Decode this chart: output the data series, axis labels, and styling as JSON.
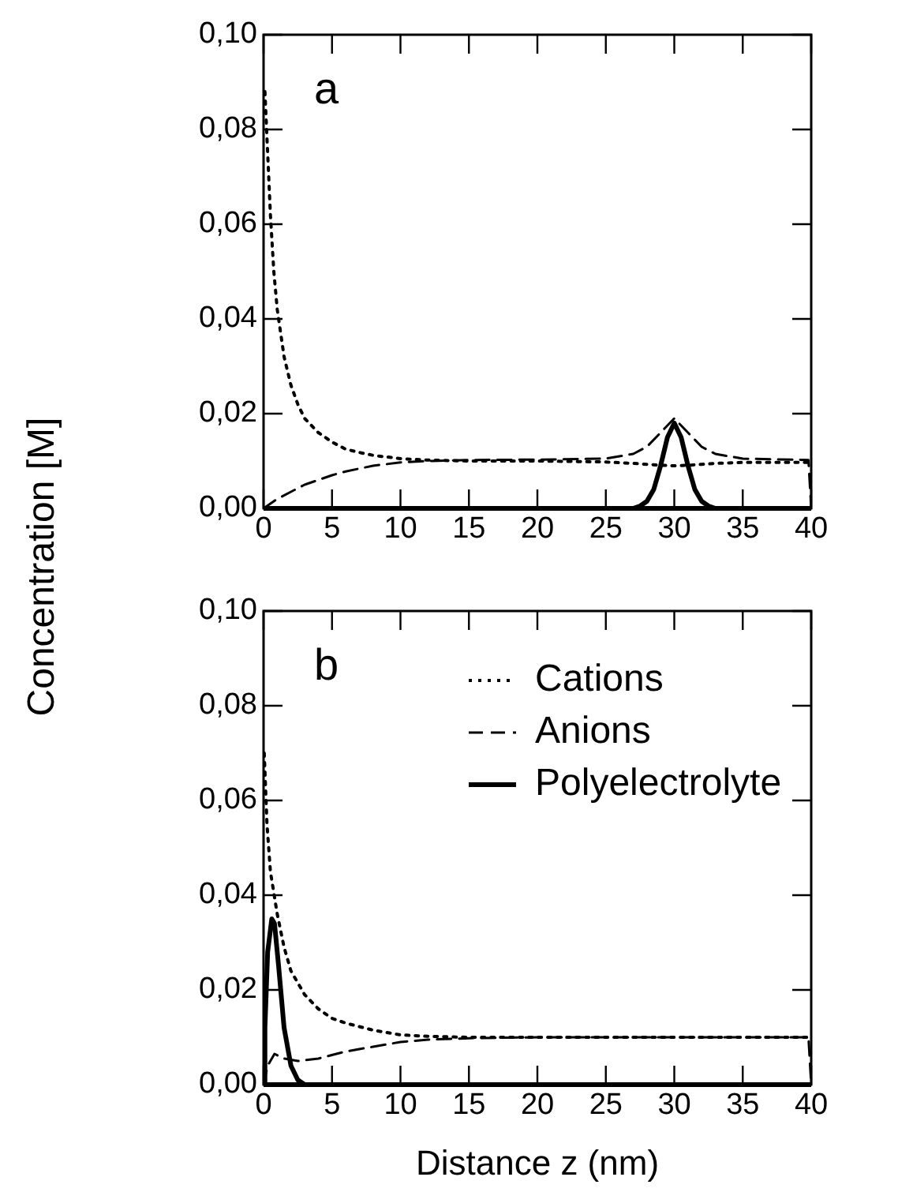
{
  "chart_data": [
    {
      "type": "line",
      "annotations": [
        "a"
      ],
      "ylabel": "Concentration [M]",
      "xlim": [
        0,
        40
      ],
      "xticks": [
        0,
        5,
        10,
        15,
        20,
        25,
        30,
        35,
        40
      ],
      "ylim": [
        0,
        0.1
      ],
      "yticks": [
        {
          "value": 0,
          "label": "0,00"
        },
        {
          "value": 0.02,
          "label": "0,02"
        },
        {
          "value": 0.04,
          "label": "0,04"
        },
        {
          "value": 0.06,
          "label": "0,06"
        },
        {
          "value": 0.08,
          "label": "0,08"
        },
        {
          "value": 0.1,
          "label": "0,10"
        }
      ],
      "grid": false,
      "legend": false,
      "marker": "none",
      "series": [
        {
          "color": "#000000",
          "line_style": "dotted",
          "x": [
            0.1,
            0.3,
            0.5,
            0.75,
            1,
            1.5,
            2,
            2.5,
            3,
            4,
            5,
            6,
            7,
            8,
            10,
            12,
            15,
            20,
            25,
            27,
            28,
            29,
            30,
            31,
            32,
            33,
            35,
            40
          ],
          "values": [
            0.088,
            0.075,
            0.062,
            0.05,
            0.042,
            0.032,
            0.026,
            0.022,
            0.019,
            0.016,
            0.014,
            0.0125,
            0.0118,
            0.0112,
            0.0105,
            0.0102,
            0.01,
            0.01,
            0.0098,
            0.0095,
            0.0093,
            0.0091,
            0.009,
            0.0091,
            0.0093,
            0.0095,
            0.0097,
            0.0097
          ]
        },
        {
          "color": "#000000",
          "line_style": "dashed",
          "x": [
            0,
            0.5,
            1,
            2,
            3,
            4,
            5,
            6,
            8,
            10,
            12,
            15,
            20,
            25,
            27,
            28,
            29,
            30,
            31,
            32,
            33,
            35,
            39.8,
            40
          ],
          "values": [
            0,
            0.001,
            0.002,
            0.0035,
            0.005,
            0.006,
            0.007,
            0.0078,
            0.009,
            0.0097,
            0.01,
            0.0102,
            0.0103,
            0.0105,
            0.0115,
            0.013,
            0.016,
            0.019,
            0.016,
            0.013,
            0.0115,
            0.0105,
            0.0102,
            0
          ]
        },
        {
          "color": "#000000",
          "line_style": "solid",
          "x": [
            0,
            27,
            27.5,
            28,
            28.5,
            29,
            29.5,
            30,
            30.5,
            31,
            31.5,
            32,
            32.5,
            33,
            40
          ],
          "values": [
            0,
            0,
            0.0005,
            0.0015,
            0.004,
            0.009,
            0.015,
            0.018,
            0.015,
            0.009,
            0.004,
            0.0015,
            0.0005,
            0,
            0
          ]
        }
      ]
    },
    {
      "type": "line",
      "annotations": [
        "b"
      ],
      "xlabel": "Distance z (nm)",
      "xlim": [
        0,
        40
      ],
      "xticks": [
        0,
        5,
        10,
        15,
        20,
        25,
        30,
        35,
        40
      ],
      "ylim": [
        0,
        0.1
      ],
      "yticks": [
        {
          "value": 0,
          "label": "0,00"
        },
        {
          "value": 0.02,
          "label": "0,02"
        },
        {
          "value": 0.04,
          "label": "0,04"
        },
        {
          "value": 0.06,
          "label": "0,06"
        },
        {
          "value": 0.08,
          "label": "0,08"
        },
        {
          "value": 0.1,
          "label": "0,10"
        }
      ],
      "grid": false,
      "legend": "top right",
      "marker": "none",
      "series": [
        {
          "name": "Cations",
          "color": "#000000",
          "line_style": "dotted",
          "x": [
            0.05,
            0.25,
            0.5,
            1,
            1.5,
            2,
            3,
            4,
            5,
            6,
            8,
            10,
            12,
            15,
            20,
            30,
            40
          ],
          "values": [
            0.07,
            0.055,
            0.045,
            0.036,
            0.029,
            0.024,
            0.019,
            0.016,
            0.014,
            0.013,
            0.0115,
            0.0105,
            0.0102,
            0.01,
            0.01,
            0.01,
            0.01
          ]
        },
        {
          "name": "Anions",
          "color": "#000000",
          "line_style": "dashed",
          "x": [
            0,
            0.3,
            0.8,
            1.5,
            2.5,
            4,
            6,
            8,
            10,
            12,
            15,
            20,
            30,
            39.8,
            40
          ],
          "values": [
            0,
            0.004,
            0.0065,
            0.0055,
            0.005,
            0.0055,
            0.007,
            0.008,
            0.009,
            0.0095,
            0.0098,
            0.01,
            0.01,
            0.01,
            0
          ]
        },
        {
          "name": "Polyelectrolyte",
          "color": "#000000",
          "line_style": "solid",
          "x": [
            0,
            0.1,
            0.3,
            0.6,
            0.8,
            1.1,
            1.5,
            2,
            2.5,
            3,
            40
          ],
          "values": [
            0,
            0.012,
            0.028,
            0.035,
            0.034,
            0.025,
            0.012,
            0.004,
            0.001,
            0,
            0
          ]
        }
      ]
    }
  ]
}
